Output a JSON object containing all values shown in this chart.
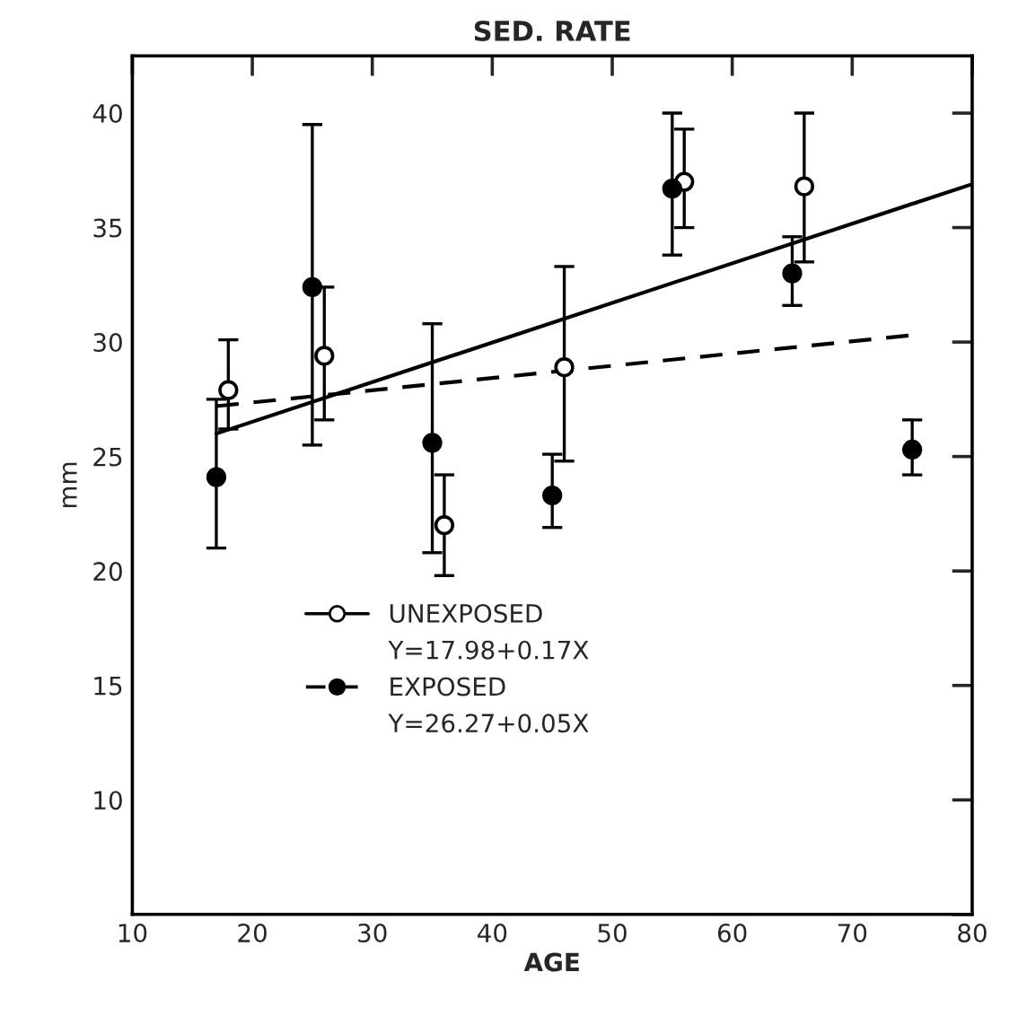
{
  "chart_data": {
    "type": "scatter",
    "title": "SED. RATE",
    "xlabel": "AGE",
    "ylabel": "mm",
    "xlim": [
      10,
      80
    ],
    "ylim": [
      5,
      42.5
    ],
    "xticks": [
      10,
      20,
      30,
      40,
      50,
      60,
      70,
      80
    ],
    "yticks": [
      {
        "value": 5,
        "label": null
      },
      10,
      15,
      20,
      25,
      30,
      35,
      40
    ],
    "grid": false,
    "legend": "lower left",
    "series": [
      {
        "name": "UNEXPOSED",
        "color": "#ffffff",
        "marker": "circle",
        "x": [
          18,
          26,
          36,
          46,
          56,
          66
        ],
        "values": [
          27.9,
          29.4,
          22,
          28.9,
          37,
          36.8
        ],
        "errors": [
          [
            26.2,
            30.1
          ],
          [
            26.6,
            32.4
          ],
          [
            19.8,
            24.2
          ],
          [
            24.8,
            33.3
          ],
          [
            35,
            39.3
          ],
          [
            33.5,
            40
          ]
        ]
      },
      {
        "name": "EXPOSED",
        "color": "#000000",
        "marker": "circle",
        "x": [
          17,
          25,
          35,
          45,
          55,
          65,
          75
        ],
        "values": [
          24.1,
          32.4,
          25.6,
          23.3,
          36.7,
          33,
          25.3
        ],
        "errors": [
          [
            21,
            27.5
          ],
          [
            25.5,
            39.5
          ],
          [
            20.8,
            30.8
          ],
          [
            21.9,
            25.1
          ],
          [
            33.8,
            40
          ],
          [
            31.6,
            34.6
          ],
          [
            24.2,
            26.6
          ]
        ]
      },
      {
        "type": "line",
        "color": "#000000",
        "line_style": "solid",
        "x": [
          17,
          80
        ],
        "values": [
          26.0,
          36.9
        ]
      },
      {
        "type": "line",
        "color": "#000000",
        "line_style": "dashed",
        "x": [
          17,
          75
        ],
        "values": [
          27.2,
          30.3
        ]
      }
    ],
    "annotations": [
      "Y=17.98+0.17X",
      "Y=26.27+0.05X"
    ]
  }
}
